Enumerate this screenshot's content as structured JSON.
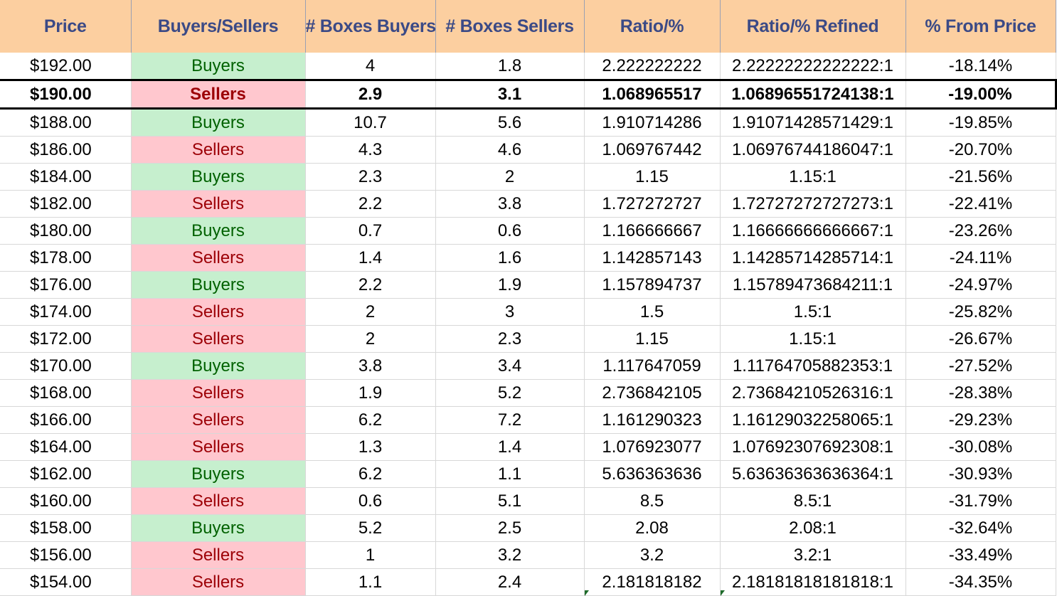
{
  "headers": [
    "Price",
    "Buyers/Sellers",
    "# Boxes Buyers",
    "# Boxes Sellers",
    "Ratio/%",
    "Ratio/% Refined",
    "% From Price"
  ],
  "selected_row": 1,
  "colors": {
    "header_bg": "#fccfa0",
    "header_text": "#3b4a86",
    "buyers_bg": "#c6efce",
    "buyers_text": "#006100",
    "sellers_bg": "#ffc7ce",
    "sellers_text": "#9c0006"
  },
  "rows": [
    {
      "price": "$192.00",
      "side": "Buyers",
      "boxes_buyers": "4",
      "boxes_sellers": "1.8",
      "ratio": "2.222222222",
      "ratio_refined": "2.22222222222222:1",
      "pct_from_price": "-18.14%"
    },
    {
      "price": "$190.00",
      "side": "Sellers",
      "boxes_buyers": "2.9",
      "boxes_sellers": "3.1",
      "ratio": "1.068965517",
      "ratio_refined": "1.06896551724138:1",
      "pct_from_price": "-19.00%"
    },
    {
      "price": "$188.00",
      "side": "Buyers",
      "boxes_buyers": "10.7",
      "boxes_sellers": "5.6",
      "ratio": "1.910714286",
      "ratio_refined": "1.91071428571429:1",
      "pct_from_price": "-19.85%"
    },
    {
      "price": "$186.00",
      "side": "Sellers",
      "boxes_buyers": "4.3",
      "boxes_sellers": "4.6",
      "ratio": "1.069767442",
      "ratio_refined": "1.06976744186047:1",
      "pct_from_price": "-20.70%"
    },
    {
      "price": "$184.00",
      "side": "Buyers",
      "boxes_buyers": "2.3",
      "boxes_sellers": "2",
      "ratio": "1.15",
      "ratio_refined": "1.15:1",
      "pct_from_price": "-21.56%"
    },
    {
      "price": "$182.00",
      "side": "Sellers",
      "boxes_buyers": "2.2",
      "boxes_sellers": "3.8",
      "ratio": "1.727272727",
      "ratio_refined": "1.72727272727273:1",
      "pct_from_price": "-22.41%"
    },
    {
      "price": "$180.00",
      "side": "Buyers",
      "boxes_buyers": "0.7",
      "boxes_sellers": "0.6",
      "ratio": "1.166666667",
      "ratio_refined": "1.16666666666667:1",
      "pct_from_price": "-23.26%"
    },
    {
      "price": "$178.00",
      "side": "Sellers",
      "boxes_buyers": "1.4",
      "boxes_sellers": "1.6",
      "ratio": "1.142857143",
      "ratio_refined": "1.14285714285714:1",
      "pct_from_price": "-24.11%"
    },
    {
      "price": "$176.00",
      "side": "Buyers",
      "boxes_buyers": "2.2",
      "boxes_sellers": "1.9",
      "ratio": "1.157894737",
      "ratio_refined": "1.15789473684211:1",
      "pct_from_price": "-24.97%"
    },
    {
      "price": "$174.00",
      "side": "Sellers",
      "boxes_buyers": "2",
      "boxes_sellers": "3",
      "ratio": "1.5",
      "ratio_refined": "1.5:1",
      "pct_from_price": "-25.82%"
    },
    {
      "price": "$172.00",
      "side": "Sellers",
      "boxes_buyers": "2",
      "boxes_sellers": "2.3",
      "ratio": "1.15",
      "ratio_refined": "1.15:1",
      "pct_from_price": "-26.67%"
    },
    {
      "price": "$170.00",
      "side": "Buyers",
      "boxes_buyers": "3.8",
      "boxes_sellers": "3.4",
      "ratio": "1.117647059",
      "ratio_refined": "1.11764705882353:1",
      "pct_from_price": "-27.52%"
    },
    {
      "price": "$168.00",
      "side": "Sellers",
      "boxes_buyers": "1.9",
      "boxes_sellers": "5.2",
      "ratio": "2.736842105",
      "ratio_refined": "2.73684210526316:1",
      "pct_from_price": "-28.38%"
    },
    {
      "price": "$166.00",
      "side": "Sellers",
      "boxes_buyers": "6.2",
      "boxes_sellers": "7.2",
      "ratio": "1.161290323",
      "ratio_refined": "1.16129032258065:1",
      "pct_from_price": "-29.23%"
    },
    {
      "price": "$164.00",
      "side": "Sellers",
      "boxes_buyers": "1.3",
      "boxes_sellers": "1.4",
      "ratio": "1.076923077",
      "ratio_refined": "1.07692307692308:1",
      "pct_from_price": "-30.08%"
    },
    {
      "price": "$162.00",
      "side": "Buyers",
      "boxes_buyers": "6.2",
      "boxes_sellers": "1.1",
      "ratio": "5.636363636",
      "ratio_refined": "5.63636363636364:1",
      "pct_from_price": "-30.93%"
    },
    {
      "price": "$160.00",
      "side": "Sellers",
      "boxes_buyers": "0.6",
      "boxes_sellers": "5.1",
      "ratio": "8.5",
      "ratio_refined": "8.5:1",
      "pct_from_price": "-31.79%"
    },
    {
      "price": "$158.00",
      "side": "Buyers",
      "boxes_buyers": "5.2",
      "boxes_sellers": "2.5",
      "ratio": "2.08",
      "ratio_refined": "2.08:1",
      "pct_from_price": "-32.64%"
    },
    {
      "price": "$156.00",
      "side": "Sellers",
      "boxes_buyers": "1",
      "boxes_sellers": "3.2",
      "ratio": "3.2",
      "ratio_refined": "3.2:1",
      "pct_from_price": "-33.49%"
    },
    {
      "price": "$154.00",
      "side": "Sellers",
      "boxes_buyers": "1.1",
      "boxes_sellers": "2.4",
      "ratio": "2.181818182",
      "ratio_refined": "2.18181818181818:1",
      "pct_from_price": "-34.35%"
    }
  ]
}
